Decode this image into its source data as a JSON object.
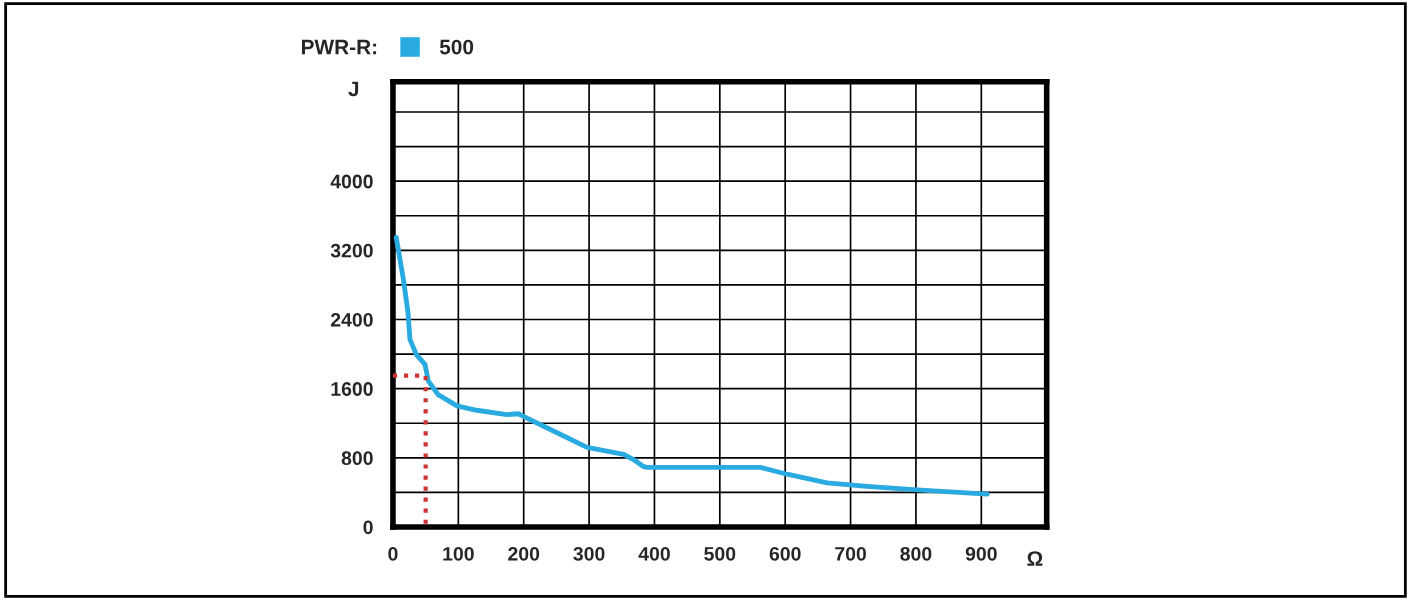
{
  "chart_data": {
    "type": "line",
    "legend_title": "PWR-R:",
    "xlabel": "Ω",
    "ylabel": "J",
    "xlim": [
      0,
      1000
    ],
    "xticks": [
      0,
      100,
      200,
      300,
      400,
      500,
      600,
      700,
      800,
      900
    ],
    "ylim": [
      0,
      5150
    ],
    "yticks": [
      0,
      {
        "value": 400,
        "label": null
      },
      800,
      {
        "value": 1200,
        "label": null
      },
      1600,
      {
        "value": 2000,
        "label": null
      },
      2400,
      {
        "value": 2800,
        "label": null
      },
      3200,
      {
        "value": 3600,
        "label": null
      },
      4000,
      {
        "value": 4400,
        "label": null
      },
      {
        "value": 4800,
        "label": null
      }
    ],
    "grid": true,
    "legend": "top left",
    "marker": "none",
    "series": [
      {
        "name": "500",
        "color": "#29abe2",
        "x": [
          5,
          16,
          23,
          26,
          36,
          49,
          54,
          69,
          98,
          128,
          174,
          192,
          205,
          251,
          297,
          353,
          368,
          383,
          388,
          562,
          603,
          664,
          725,
          802,
          909
        ],
        "values": [
          3350,
          2860,
          2480,
          2170,
          1990,
          1880,
          1690,
          1530,
          1400,
          1350,
          1300,
          1310,
          1260,
          1090,
          920,
          840,
          780,
          700,
          690,
          690,
          610,
          510,
          470,
          430,
          380
        ]
      },
      {
        "color": "#cc3333",
        "line_style": "dotted",
        "x": [
          0,
          50,
          50
        ],
        "values": [
          1750,
          1750,
          0
        ]
      }
    ]
  }
}
